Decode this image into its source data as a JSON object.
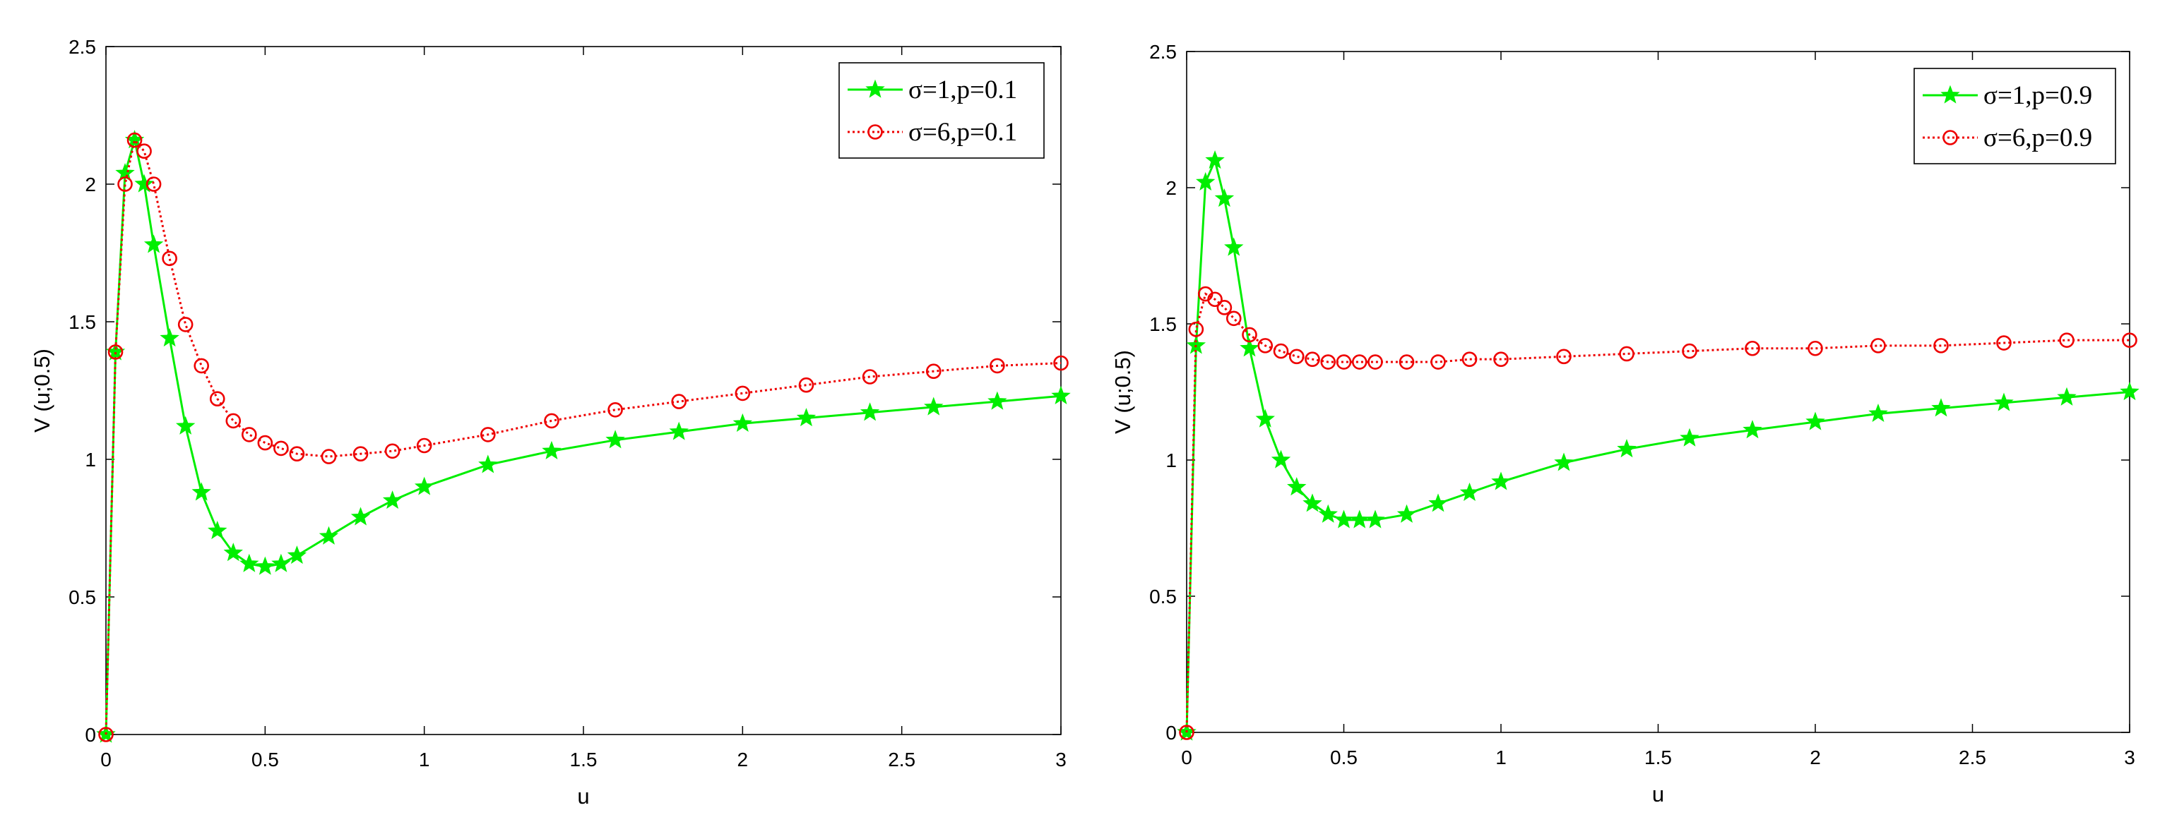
{
  "chart_data": [
    {
      "type": "line",
      "title": "",
      "xlabel": "u",
      "ylabel": "V (u;0.5)",
      "xlim": [
        0,
        3
      ],
      "ylim": [
        0,
        2.5
      ],
      "xticks": [
        0,
        0.5,
        1,
        1.5,
        2,
        2.5,
        3
      ],
      "xtick_labels": [
        "0",
        "0.5",
        "1",
        "1.5",
        "2",
        "2.5",
        "3"
      ],
      "yticks": [
        0,
        0.5,
        1,
        1.5,
        2,
        2.5
      ],
      "ytick_labels": [
        "0",
        "0.5",
        "1",
        "1.5",
        "2",
        "2.5"
      ],
      "grid": false,
      "legend_position": "top-right",
      "series": [
        {
          "name": "σ=1,p=0.1",
          "color": "#00ee00",
          "line_style": "solid",
          "marker": "star",
          "x": [
            0,
            0.03,
            0.06,
            0.09,
            0.12,
            0.15,
            0.2,
            0.25,
            0.3,
            0.35,
            0.4,
            0.45,
            0.5,
            0.55,
            0.6,
            0.7,
            0.8,
            0.9,
            1.0,
            1.2,
            1.4,
            1.6,
            1.8,
            2.0,
            2.2,
            2.4,
            2.6,
            2.8,
            3.0
          ],
          "y": [
            0,
            1.39,
            2.04,
            2.16,
            2.0,
            1.78,
            1.44,
            1.12,
            0.88,
            0.74,
            0.66,
            0.62,
            0.61,
            0.62,
            0.65,
            0.72,
            0.79,
            0.85,
            0.9,
            0.98,
            1.03,
            1.07,
            1.1,
            1.13,
            1.15,
            1.17,
            1.19,
            1.21,
            1.23
          ]
        },
        {
          "name": "σ=6,p=0.1",
          "color": "#ee0000",
          "line_style": "dotted",
          "marker": "circle",
          "x": [
            0,
            0.03,
            0.06,
            0.09,
            0.12,
            0.15,
            0.2,
            0.25,
            0.3,
            0.35,
            0.4,
            0.45,
            0.5,
            0.55,
            0.6,
            0.7,
            0.8,
            0.9,
            1.0,
            1.2,
            1.4,
            1.6,
            1.8,
            2.0,
            2.2,
            2.4,
            2.6,
            2.8,
            3.0
          ],
          "y": [
            0,
            1.39,
            2.0,
            2.16,
            2.12,
            2.0,
            1.73,
            1.49,
            1.34,
            1.22,
            1.14,
            1.09,
            1.06,
            1.04,
            1.02,
            1.01,
            1.02,
            1.03,
            1.05,
            1.09,
            1.14,
            1.18,
            1.21,
            1.24,
            1.27,
            1.3,
            1.32,
            1.34,
            1.35
          ]
        }
      ]
    },
    {
      "type": "line",
      "title": "",
      "xlabel": "u",
      "ylabel": "V (u;0.5)",
      "xlim": [
        0,
        3
      ],
      "ylim": [
        0,
        2.5
      ],
      "xticks": [
        0,
        0.5,
        1,
        1.5,
        2,
        2.5,
        3
      ],
      "xtick_labels": [
        "0",
        "0.5",
        "1",
        "1.5",
        "2",
        "2.5",
        "3"
      ],
      "yticks": [
        0,
        0.5,
        1,
        1.5,
        2,
        2.5
      ],
      "ytick_labels": [
        "0",
        "0.5",
        "1",
        "1.5",
        "2",
        "2.5"
      ],
      "grid": false,
      "legend_position": "top-right",
      "series": [
        {
          "name": "σ=1,p=0.9",
          "color": "#00ee00",
          "line_style": "solid",
          "marker": "star",
          "x": [
            0,
            0.03,
            0.06,
            0.09,
            0.12,
            0.15,
            0.2,
            0.25,
            0.3,
            0.35,
            0.4,
            0.45,
            0.5,
            0.55,
            0.6,
            0.7,
            0.8,
            0.9,
            1.0,
            1.2,
            1.4,
            1.6,
            1.8,
            2.0,
            2.2,
            2.4,
            2.6,
            2.8,
            3.0
          ],
          "y": [
            0,
            1.42,
            2.02,
            2.1,
            1.96,
            1.78,
            1.41,
            1.15,
            1.0,
            0.9,
            0.84,
            0.8,
            0.78,
            0.78,
            0.78,
            0.8,
            0.84,
            0.88,
            0.92,
            0.99,
            1.04,
            1.08,
            1.11,
            1.14,
            1.17,
            1.19,
            1.21,
            1.23,
            1.25
          ]
        },
        {
          "name": "σ=6,p=0.9",
          "color": "#ee0000",
          "line_style": "dotted",
          "marker": "circle",
          "x": [
            0,
            0.03,
            0.06,
            0.09,
            0.12,
            0.15,
            0.2,
            0.25,
            0.3,
            0.35,
            0.4,
            0.45,
            0.5,
            0.55,
            0.6,
            0.7,
            0.8,
            0.9,
            1.0,
            1.2,
            1.4,
            1.6,
            1.8,
            2.0,
            2.2,
            2.4,
            2.6,
            2.8,
            3.0
          ],
          "y": [
            0,
            1.48,
            1.61,
            1.59,
            1.56,
            1.52,
            1.46,
            1.42,
            1.4,
            1.38,
            1.37,
            1.36,
            1.36,
            1.36,
            1.36,
            1.36,
            1.36,
            1.37,
            1.37,
            1.38,
            1.39,
            1.4,
            1.41,
            1.41,
            1.42,
            1.42,
            1.43,
            1.44,
            1.44
          ]
        }
      ]
    }
  ]
}
